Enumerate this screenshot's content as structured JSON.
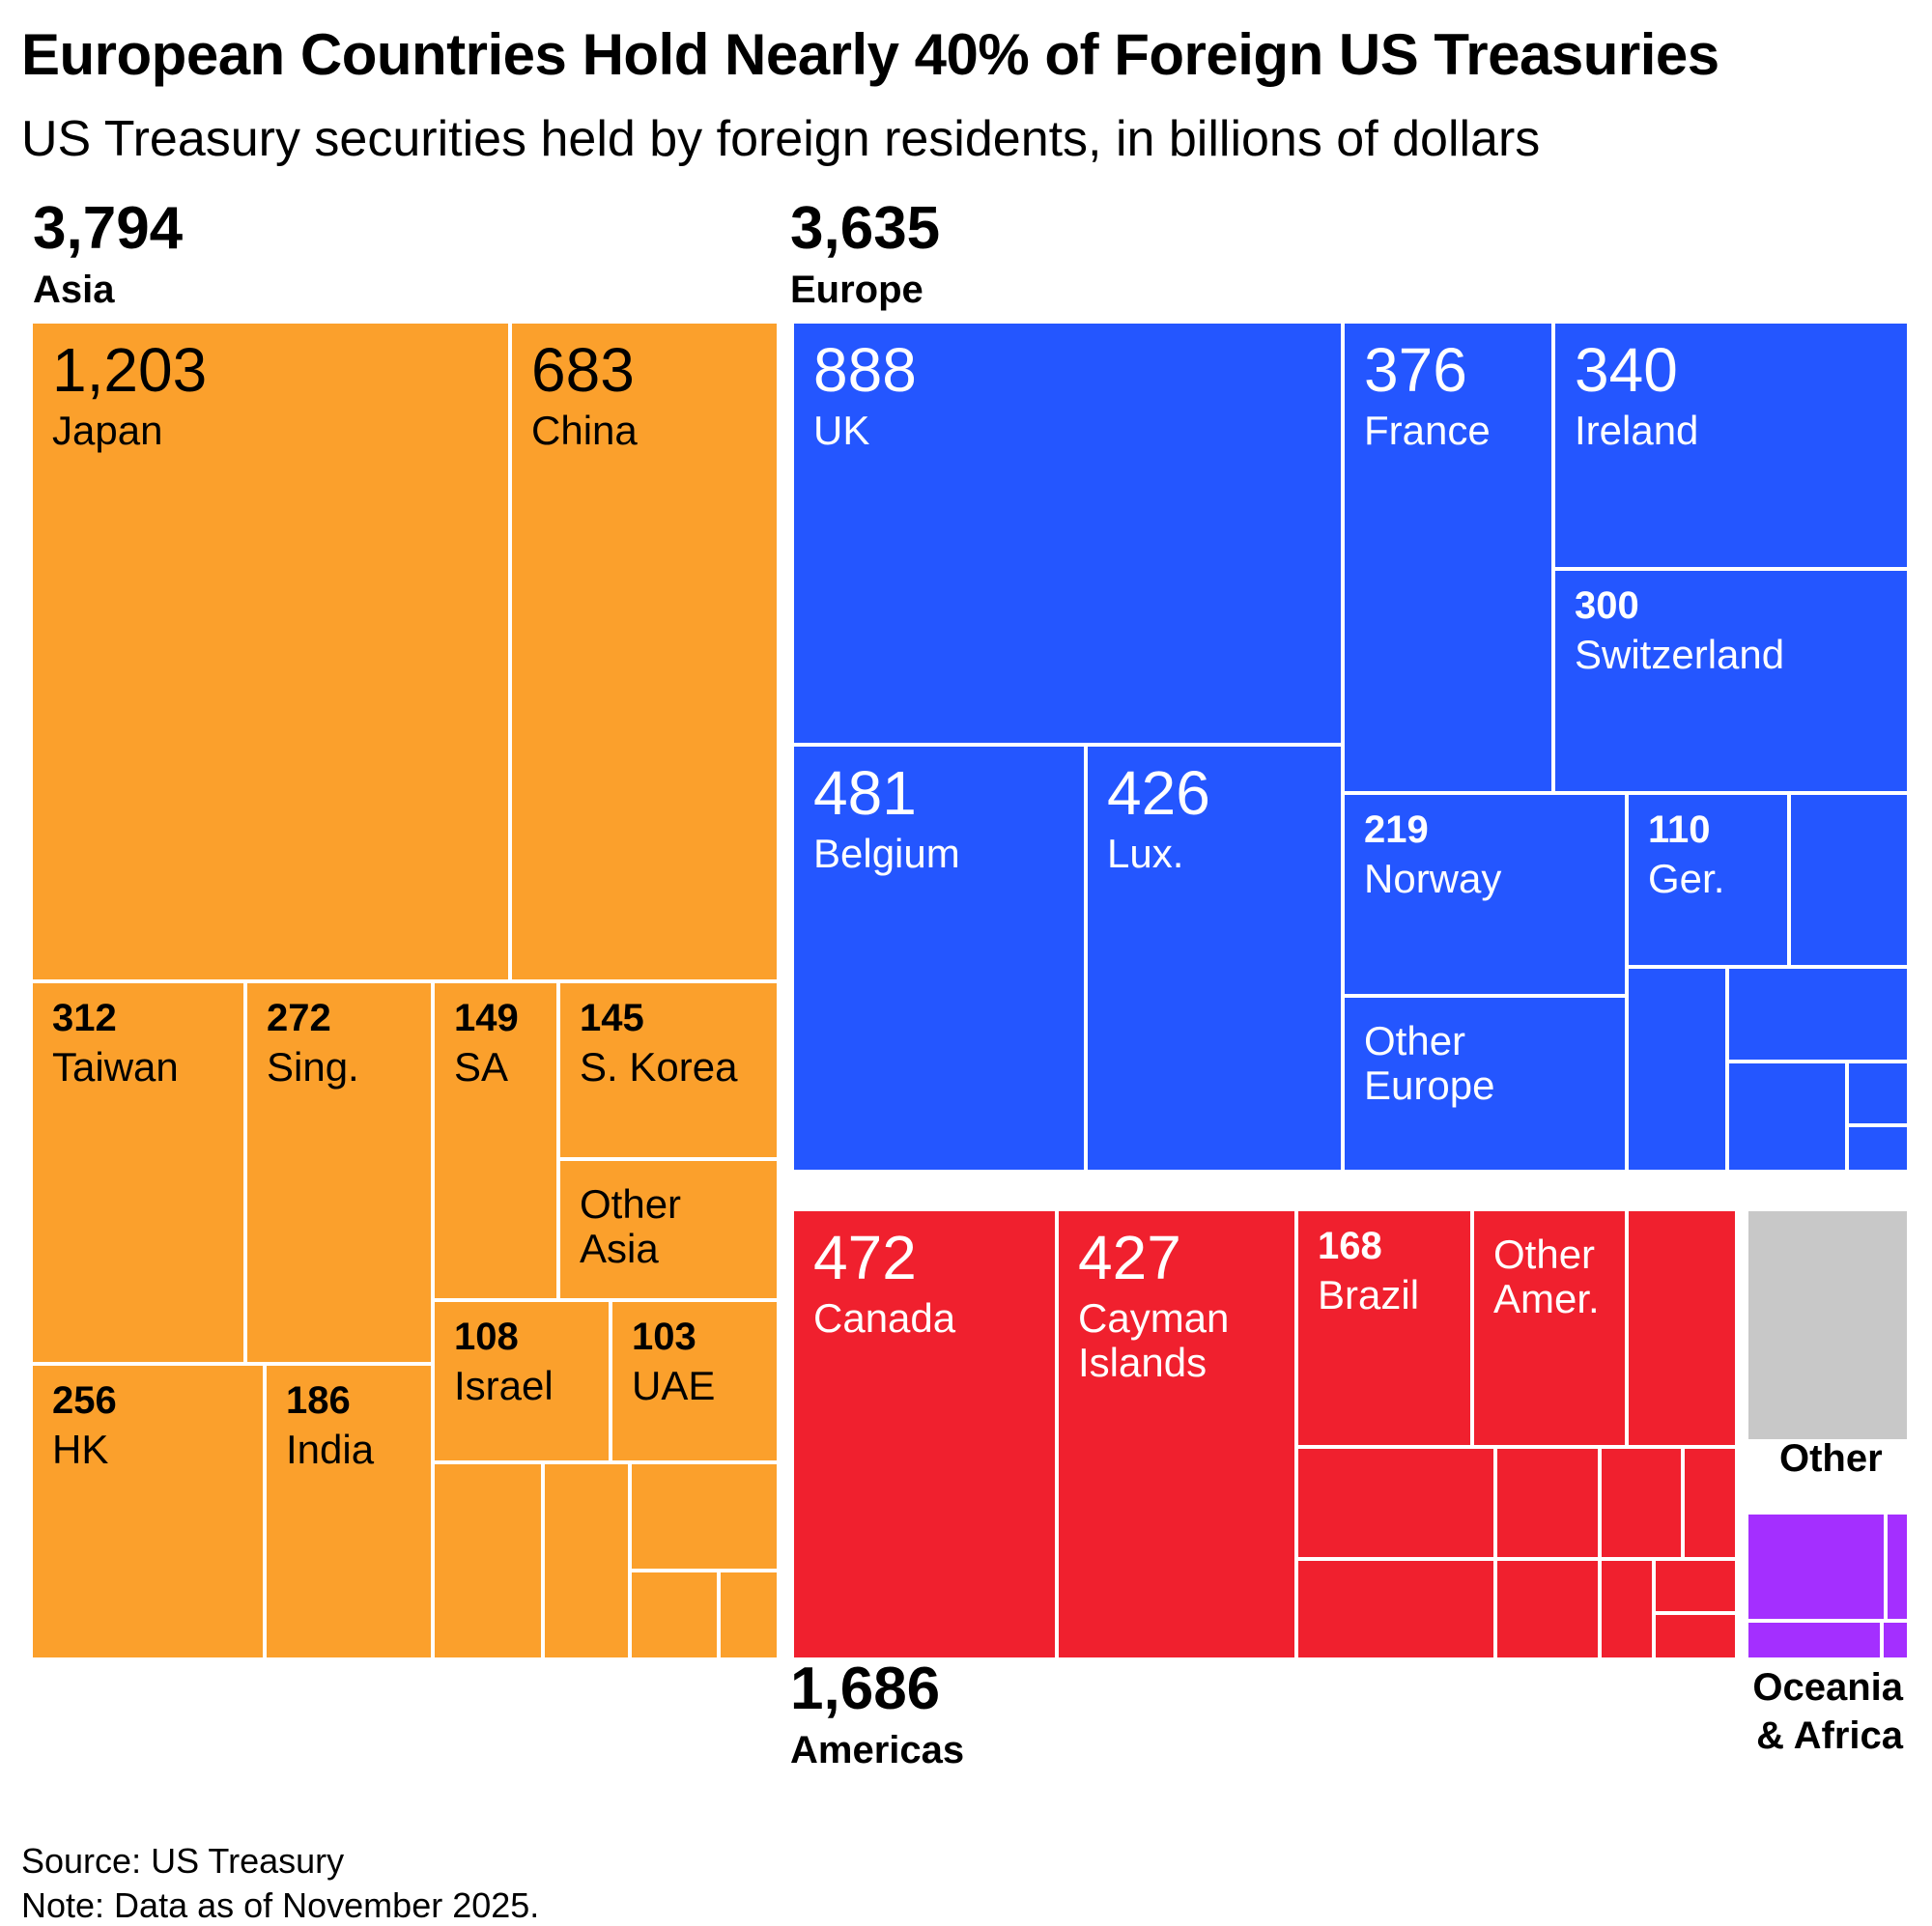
{
  "title": "European Countries Hold Nearly 40% of Foreign US Treasuries",
  "subtitle": "US Treasury securities held by foreign residents, in billions of dollars",
  "footer": {
    "source": "Source: US Treasury",
    "note": "Note: Data as of November 2025."
  },
  "chart_data": {
    "type": "treemap",
    "units": "billions of dollars",
    "colors": {
      "Asia": "#fba02c",
      "Europe": "#2456ff",
      "Americas": "#f0202e",
      "Other": "#c8c8c8",
      "Oceania & Africa": "#a42fff"
    },
    "groups": [
      {
        "name": "Asia",
        "total": "3,794",
        "items": [
          {
            "label": "Japan",
            "value": "1,203"
          },
          {
            "label": "China",
            "value": "683"
          },
          {
            "label": "Taiwan",
            "value": "312"
          },
          {
            "label": "Sing.",
            "value": "272"
          },
          {
            "label": "SA",
            "value": "149"
          },
          {
            "label": "S. Korea",
            "value": "145"
          },
          {
            "label": "Other Asia",
            "value": ""
          },
          {
            "label": "HK",
            "value": "256"
          },
          {
            "label": "India",
            "value": "186"
          },
          {
            "label": "Israel",
            "value": "108"
          },
          {
            "label": "UAE",
            "value": "103"
          }
        ]
      },
      {
        "name": "Europe",
        "total": "3,635",
        "items": [
          {
            "label": "UK",
            "value": "888"
          },
          {
            "label": "France",
            "value": "376"
          },
          {
            "label": "Ireland",
            "value": "340"
          },
          {
            "label": "Switzerland",
            "value": "300"
          },
          {
            "label": "Belgium",
            "value": "481"
          },
          {
            "label": "Lux.",
            "value": "426"
          },
          {
            "label": "Norway",
            "value": "219"
          },
          {
            "label": "Ger.",
            "value": "110"
          },
          {
            "label": "Other Europe",
            "value": ""
          }
        ]
      },
      {
        "name": "Americas",
        "total": "1,686",
        "items": [
          {
            "label": "Canada",
            "value": "472"
          },
          {
            "label": "Cayman Islands",
            "value": "427"
          },
          {
            "label": "Brazil",
            "value": "168"
          },
          {
            "label": "Other Amer.",
            "value": ""
          }
        ]
      },
      {
        "name": "Other",
        "total": "",
        "items": []
      },
      {
        "name": "Oceania & Africa",
        "total": "",
        "items": []
      }
    ]
  }
}
